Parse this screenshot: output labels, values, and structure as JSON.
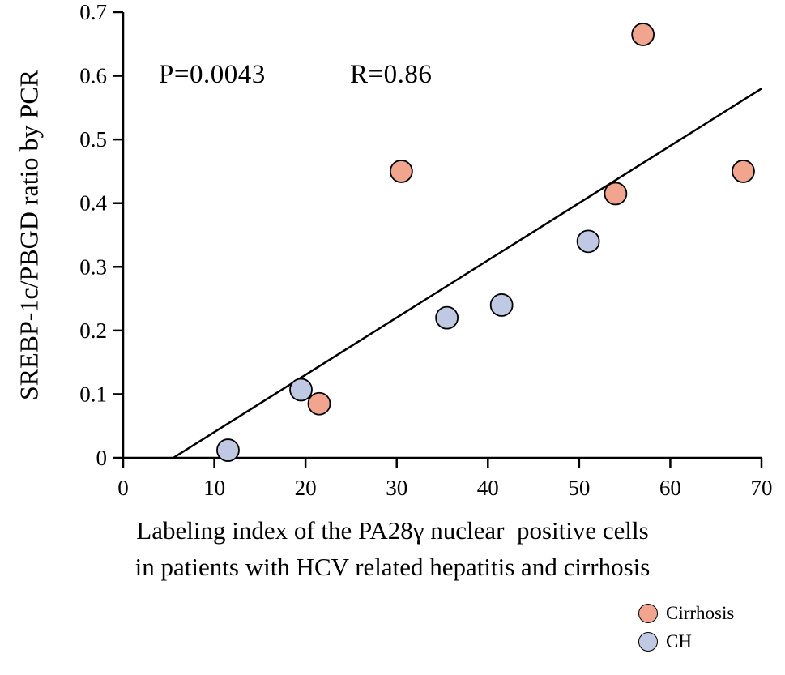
{
  "chart_data": {
    "type": "scatter",
    "annotation": {
      "p": "P=0.0043",
      "r": "R=0.86"
    },
    "ylabel": "SREBP-1c/PBGD ratio by PCR",
    "xlabel_line1": "Labeling index of the PA28γ nuclear  positive cells",
    "xlabel_line2": "in patients with HCV related hepatitis and cirrhosis",
    "xlim": [
      0,
      70
    ],
    "ylim": [
      0,
      0.7
    ],
    "x_ticks": [
      0,
      10,
      20,
      30,
      40,
      50,
      60,
      70
    ],
    "x_tick_labels": [
      "0",
      "10",
      "20",
      "30",
      "40",
      "50",
      "60",
      "70"
    ],
    "y_ticks": [
      0,
      0.1,
      0.2,
      0.3,
      0.4,
      0.5,
      0.6,
      0.7
    ],
    "y_tick_labels": [
      "0",
      "0.1",
      "0.2",
      "0.3",
      "0.4",
      "0.5",
      "0.6",
      "0.7"
    ],
    "grid": false,
    "legend_position": "bottom-right",
    "series": [
      {
        "name": "Cirrhosis",
        "color": "#F1A48E",
        "points": [
          [
            21.5,
            0.085
          ],
          [
            30.5,
            0.45
          ],
          [
            54,
            0.415
          ],
          [
            57,
            0.665
          ],
          [
            68,
            0.45
          ]
        ]
      },
      {
        "name": "CH",
        "color": "#BFC9E3",
        "points": [
          [
            11.5,
            0.012
          ],
          [
            19.5,
            0.107
          ],
          [
            35.5,
            0.22
          ],
          [
            41.5,
            0.24
          ],
          [
            51,
            0.34
          ]
        ]
      }
    ],
    "fit_line": {
      "x": [
        5.5,
        70
      ],
      "y": [
        0,
        0.58
      ]
    },
    "legend": [
      {
        "label": "Cirrhosis",
        "color": "#F1A48E"
      },
      {
        "label": "CH",
        "color": "#BFC9E3"
      }
    ]
  }
}
